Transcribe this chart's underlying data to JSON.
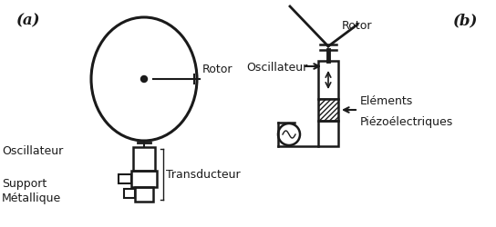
{
  "bg_color": "#ffffff",
  "line_color": "#1a1a1a",
  "label_a": "(a)",
  "label_b": "(b)",
  "label_rotor_a": "Rotor",
  "label_rotor_b": "Rotor",
  "label_oscillateur_a": "Oscillateur",
  "label_oscillateur_b": "Oscillateur",
  "label_support": "Support",
  "label_metallique": "Métallique",
  "label_transducteur": "Transducteur",
  "label_elements": "Eléments",
  "label_piezo": "Piézoélectriques",
  "figsize": [
    5.44,
    2.51
  ],
  "dpi": 100
}
